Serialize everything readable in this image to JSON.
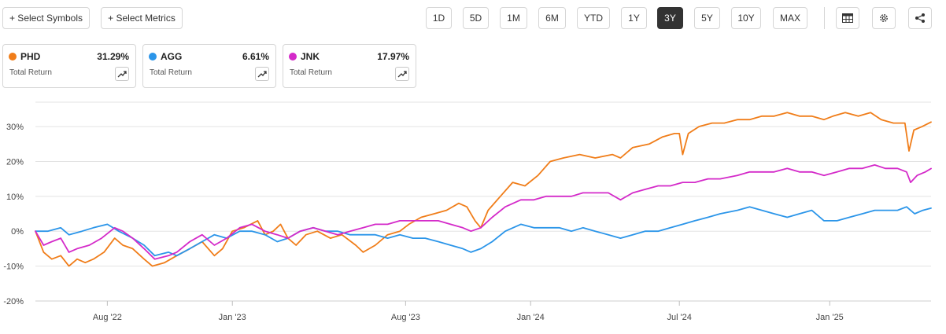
{
  "toolbar": {
    "select_symbols": "+ Select Symbols",
    "select_metrics": "+ Select Metrics",
    "ranges": [
      "1D",
      "5D",
      "1M",
      "6M",
      "YTD",
      "1Y",
      "3Y",
      "5Y",
      "10Y",
      "MAX"
    ],
    "active_range": "3Y",
    "icons": [
      "table-icon",
      "settings-gear-icon",
      "share-icon"
    ]
  },
  "cards": [
    {
      "symbol": "PHD",
      "value": "31.29%",
      "sub": "Total Return",
      "color": "#f07d19",
      "icon": "trend-arrow-icon"
    },
    {
      "symbol": "AGG",
      "value": "6.61%",
      "sub": "Total Return",
      "color": "#2b95e9",
      "icon": "trend-arrow-icon"
    },
    {
      "symbol": "JNK",
      "value": "17.97%",
      "sub": "Total Return",
      "color": "#d42ac9",
      "icon": "trend-arrow-icon"
    }
  ],
  "chart_data": {
    "type": "line",
    "y_tick_labels": [
      "30%",
      "20%",
      "10%",
      "0%",
      "-10%",
      "-20%"
    ],
    "y_ticks": [
      30,
      20,
      10,
      0,
      -10,
      -20
    ],
    "ylim": [
      -20,
      37
    ],
    "x_tick_labels": [
      "Aug '22",
      "Jan '23",
      "Aug '23",
      "Jan '24",
      "Jul '24",
      "Jan '25"
    ],
    "x_ticks": [
      "2022-08-01",
      "2023-01-01",
      "2023-08-01",
      "2024-01-01",
      "2024-07-01",
      "2025-01-01"
    ],
    "xlim": [
      "2022-05-05",
      "2025-05-05"
    ],
    "grid": true,
    "series": [
      {
        "name": "PHD",
        "color": "#f07d19",
        "points": [
          [
            "2022-05-05",
            0
          ],
          [
            "2022-05-15",
            -6
          ],
          [
            "2022-05-25",
            -8
          ],
          [
            "2022-06-05",
            -7
          ],
          [
            "2022-06-15",
            -10
          ],
          [
            "2022-06-25",
            -8
          ],
          [
            "2022-07-05",
            -9
          ],
          [
            "2022-07-15",
            -8
          ],
          [
            "2022-07-28",
            -6
          ],
          [
            "2022-08-10",
            -2
          ],
          [
            "2022-08-20",
            -4
          ],
          [
            "2022-09-01",
            -5
          ],
          [
            "2022-09-15",
            -8
          ],
          [
            "2022-09-25",
            -10
          ],
          [
            "2022-10-10",
            -9
          ],
          [
            "2022-10-25",
            -7
          ],
          [
            "2022-11-10",
            -5
          ],
          [
            "2022-11-25",
            -3
          ],
          [
            "2022-12-10",
            -7
          ],
          [
            "2022-12-20",
            -5
          ],
          [
            "2023-01-01",
            0
          ],
          [
            "2023-01-15",
            1
          ],
          [
            "2023-02-01",
            3
          ],
          [
            "2023-02-10",
            -1
          ],
          [
            "2023-02-20",
            0
          ],
          [
            "2023-03-01",
            2
          ],
          [
            "2023-03-10",
            -2
          ],
          [
            "2023-03-20",
            -4
          ],
          [
            "2023-04-01",
            -1
          ],
          [
            "2023-04-15",
            0
          ],
          [
            "2023-05-01",
            -2
          ],
          [
            "2023-05-15",
            -1
          ],
          [
            "2023-06-01",
            -4
          ],
          [
            "2023-06-10",
            -6
          ],
          [
            "2023-06-25",
            -4
          ],
          [
            "2023-07-10",
            -1
          ],
          [
            "2023-07-25",
            0
          ],
          [
            "2023-08-05",
            2
          ],
          [
            "2023-08-20",
            4
          ],
          [
            "2023-09-05",
            5
          ],
          [
            "2023-09-20",
            6
          ],
          [
            "2023-10-05",
            8
          ],
          [
            "2023-10-15",
            7
          ],
          [
            "2023-10-25",
            3
          ],
          [
            "2023-11-01",
            1
          ],
          [
            "2023-11-10",
            6
          ],
          [
            "2023-11-25",
            10
          ],
          [
            "2023-12-10",
            14
          ],
          [
            "2023-12-25",
            13
          ],
          [
            "2024-01-10",
            16
          ],
          [
            "2024-01-25",
            20
          ],
          [
            "2024-02-10",
            21
          ],
          [
            "2024-03-01",
            22
          ],
          [
            "2024-03-20",
            21
          ],
          [
            "2024-04-10",
            22
          ],
          [
            "2024-04-20",
            21
          ],
          [
            "2024-05-05",
            24
          ],
          [
            "2024-05-25",
            25
          ],
          [
            "2024-06-10",
            27
          ],
          [
            "2024-06-25",
            28
          ],
          [
            "2024-07-01",
            28
          ],
          [
            "2024-07-05",
            22
          ],
          [
            "2024-07-12",
            28
          ],
          [
            "2024-07-25",
            30
          ],
          [
            "2024-08-10",
            31
          ],
          [
            "2024-08-25",
            31
          ],
          [
            "2024-09-10",
            32
          ],
          [
            "2024-09-25",
            32
          ],
          [
            "2024-10-10",
            33
          ],
          [
            "2024-10-25",
            33
          ],
          [
            "2024-11-10",
            34
          ],
          [
            "2024-11-25",
            33
          ],
          [
            "2024-12-10",
            33
          ],
          [
            "2024-12-25",
            32
          ],
          [
            "2025-01-05",
            33
          ],
          [
            "2025-01-20",
            34
          ],
          [
            "2025-02-05",
            33
          ],
          [
            "2025-02-20",
            34
          ],
          [
            "2025-03-05",
            32
          ],
          [
            "2025-03-20",
            31
          ],
          [
            "2025-04-03",
            31
          ],
          [
            "2025-04-08",
            23
          ],
          [
            "2025-04-14",
            29
          ],
          [
            "2025-04-24",
            30
          ],
          [
            "2025-05-05",
            31.29
          ]
        ]
      },
      {
        "name": "AGG",
        "color": "#2b95e9",
        "points": [
          [
            "2022-05-05",
            0
          ],
          [
            "2022-05-20",
            0
          ],
          [
            "2022-06-05",
            1
          ],
          [
            "2022-06-15",
            -1
          ],
          [
            "2022-07-01",
            0
          ],
          [
            "2022-07-15",
            1
          ],
          [
            "2022-08-01",
            2
          ],
          [
            "2022-08-15",
            0
          ],
          [
            "2022-09-01",
            -2
          ],
          [
            "2022-09-15",
            -4
          ],
          [
            "2022-09-28",
            -7
          ],
          [
            "2022-10-15",
            -6
          ],
          [
            "2022-10-25",
            -7
          ],
          [
            "2022-11-10",
            -5
          ],
          [
            "2022-11-25",
            -3
          ],
          [
            "2022-12-10",
            -1
          ],
          [
            "2022-12-25",
            -2
          ],
          [
            "2023-01-10",
            0
          ],
          [
            "2023-01-25",
            0
          ],
          [
            "2023-02-10",
            -1
          ],
          [
            "2023-02-25",
            -3
          ],
          [
            "2023-03-10",
            -2
          ],
          [
            "2023-03-25",
            0
          ],
          [
            "2023-04-10",
            1
          ],
          [
            "2023-04-25",
            0
          ],
          [
            "2023-05-10",
            0
          ],
          [
            "2023-05-25",
            -1
          ],
          [
            "2023-06-10",
            -1
          ],
          [
            "2023-06-25",
            -1
          ],
          [
            "2023-07-10",
            -2
          ],
          [
            "2023-07-25",
            -1
          ],
          [
            "2023-08-10",
            -2
          ],
          [
            "2023-08-25",
            -2
          ],
          [
            "2023-09-10",
            -3
          ],
          [
            "2023-09-25",
            -4
          ],
          [
            "2023-10-10",
            -5
          ],
          [
            "2023-10-20",
            -6
          ],
          [
            "2023-11-01",
            -5
          ],
          [
            "2023-11-15",
            -3
          ],
          [
            "2023-12-01",
            0
          ],
          [
            "2023-12-20",
            2
          ],
          [
            "2024-01-05",
            1
          ],
          [
            "2024-01-20",
            1
          ],
          [
            "2024-02-05",
            1
          ],
          [
            "2024-02-20",
            0
          ],
          [
            "2024-03-05",
            1
          ],
          [
            "2024-03-20",
            0
          ],
          [
            "2024-04-05",
            -1
          ],
          [
            "2024-04-20",
            -2
          ],
          [
            "2024-05-05",
            -1
          ],
          [
            "2024-05-20",
            0
          ],
          [
            "2024-06-05",
            0
          ],
          [
            "2024-06-20",
            1
          ],
          [
            "2024-07-05",
            2
          ],
          [
            "2024-07-20",
            3
          ],
          [
            "2024-08-05",
            4
          ],
          [
            "2024-08-20",
            5
          ],
          [
            "2024-09-10",
            6
          ],
          [
            "2024-09-25",
            7
          ],
          [
            "2024-10-10",
            6
          ],
          [
            "2024-10-25",
            5
          ],
          [
            "2024-11-10",
            4
          ],
          [
            "2024-11-25",
            5
          ],
          [
            "2024-12-10",
            6
          ],
          [
            "2024-12-25",
            3
          ],
          [
            "2025-01-10",
            3
          ],
          [
            "2025-01-25",
            4
          ],
          [
            "2025-02-10",
            5
          ],
          [
            "2025-02-25",
            6
          ],
          [
            "2025-03-10",
            6
          ],
          [
            "2025-03-25",
            6
          ],
          [
            "2025-04-05",
            7
          ],
          [
            "2025-04-15",
            5
          ],
          [
            "2025-04-25",
            6
          ],
          [
            "2025-05-05",
            6.61
          ]
        ]
      },
      {
        "name": "JNK",
        "color": "#d42ac9",
        "points": [
          [
            "2022-05-05",
            0
          ],
          [
            "2022-05-15",
            -4
          ],
          [
            "2022-05-25",
            -3
          ],
          [
            "2022-06-05",
            -2
          ],
          [
            "2022-06-15",
            -6
          ],
          [
            "2022-06-25",
            -5
          ],
          [
            "2022-07-10",
            -4
          ],
          [
            "2022-07-25",
            -2
          ],
          [
            "2022-08-10",
            1
          ],
          [
            "2022-08-20",
            0
          ],
          [
            "2022-09-01",
            -2
          ],
          [
            "2022-09-15",
            -5
          ],
          [
            "2022-09-28",
            -8
          ],
          [
            "2022-10-15",
            -7
          ],
          [
            "2022-10-25",
            -6
          ],
          [
            "2022-11-10",
            -3
          ],
          [
            "2022-11-25",
            -1
          ],
          [
            "2022-12-10",
            -4
          ],
          [
            "2022-12-25",
            -2
          ],
          [
            "2023-01-10",
            1
          ],
          [
            "2023-01-25",
            2
          ],
          [
            "2023-02-10",
            0
          ],
          [
            "2023-02-25",
            -1
          ],
          [
            "2023-03-10",
            -2
          ],
          [
            "2023-03-25",
            0
          ],
          [
            "2023-04-10",
            1
          ],
          [
            "2023-04-25",
            0
          ],
          [
            "2023-05-10",
            -1
          ],
          [
            "2023-05-25",
            0
          ],
          [
            "2023-06-10",
            1
          ],
          [
            "2023-06-25",
            2
          ],
          [
            "2023-07-10",
            2
          ],
          [
            "2023-07-25",
            3
          ],
          [
            "2023-08-10",
            3
          ],
          [
            "2023-08-25",
            3
          ],
          [
            "2023-09-10",
            3
          ],
          [
            "2023-09-25",
            2
          ],
          [
            "2023-10-10",
            1
          ],
          [
            "2023-10-20",
            0
          ],
          [
            "2023-11-01",
            1
          ],
          [
            "2023-11-15",
            4
          ],
          [
            "2023-12-01",
            7
          ],
          [
            "2023-12-20",
            9
          ],
          [
            "2024-01-05",
            9
          ],
          [
            "2024-01-20",
            10
          ],
          [
            "2024-02-05",
            10
          ],
          [
            "2024-02-20",
            10
          ],
          [
            "2024-03-05",
            11
          ],
          [
            "2024-03-20",
            11
          ],
          [
            "2024-04-05",
            11
          ],
          [
            "2024-04-20",
            9
          ],
          [
            "2024-05-05",
            11
          ],
          [
            "2024-05-20",
            12
          ],
          [
            "2024-06-05",
            13
          ],
          [
            "2024-06-20",
            13
          ],
          [
            "2024-07-05",
            14
          ],
          [
            "2024-07-20",
            14
          ],
          [
            "2024-08-05",
            15
          ],
          [
            "2024-08-20",
            15
          ],
          [
            "2024-09-10",
            16
          ],
          [
            "2024-09-25",
            17
          ],
          [
            "2024-10-10",
            17
          ],
          [
            "2024-10-25",
            17
          ],
          [
            "2024-11-10",
            18
          ],
          [
            "2024-11-25",
            17
          ],
          [
            "2024-12-10",
            17
          ],
          [
            "2024-12-25",
            16
          ],
          [
            "2025-01-10",
            17
          ],
          [
            "2025-01-25",
            18
          ],
          [
            "2025-02-10",
            18
          ],
          [
            "2025-02-25",
            19
          ],
          [
            "2025-03-10",
            18
          ],
          [
            "2025-03-25",
            18
          ],
          [
            "2025-04-05",
            17
          ],
          [
            "2025-04-10",
            14
          ],
          [
            "2025-04-18",
            16
          ],
          [
            "2025-04-28",
            17
          ],
          [
            "2025-05-05",
            17.97
          ]
        ]
      }
    ]
  }
}
